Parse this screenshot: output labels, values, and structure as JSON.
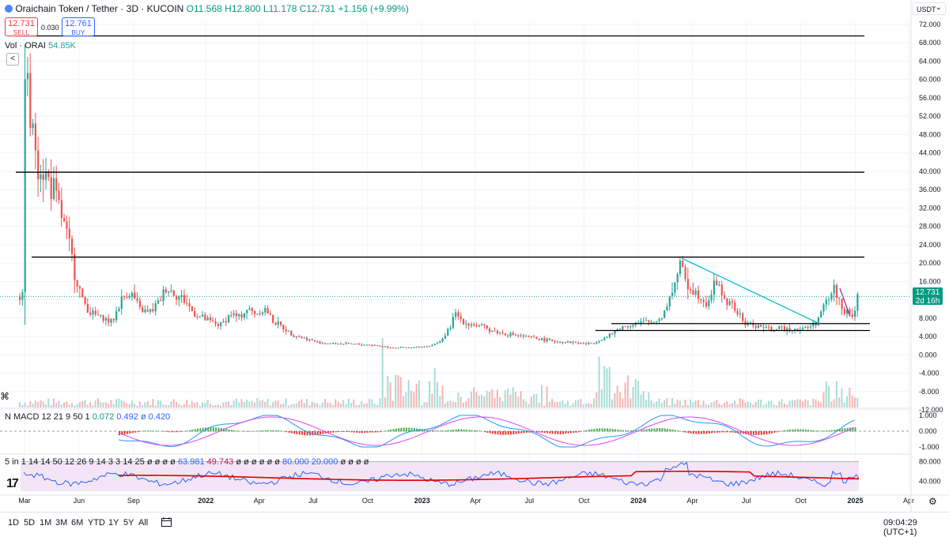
{
  "header": {
    "symbol": "Oraichain Token / Tether · 3D · KUCOIN",
    "open": "O11.568",
    "high": "H12.800",
    "low": "L11.178",
    "close": "C12.731",
    "change": "+1.156 (+9.99%)",
    "sell_price": "12.731",
    "sell_label": "SELL",
    "spread": "0.030",
    "buy_price": "12.761",
    "buy_label": "BUY",
    "toggle_label": "<"
  },
  "volume_legend": {
    "label": "Vol · ORAI",
    "value": "54.85K"
  },
  "macd_legend": {
    "label": "N MACD 12 21 9 50 1",
    "v1": "0.072",
    "v2": "0.492",
    "v3": "ø 0.420"
  },
  "rsi_legend": {
    "label": "5 in 1 14 14 50 12 26 9 14 3 3 14 25",
    "blanks1": "ø ø ø ø",
    "v1": "63.981",
    "v2": "49.743",
    "blanks2": "ø ø ø ø ø ø",
    "v3": "80.000",
    "v4": "20.000",
    "blanks3": "ø ø ø ø"
  },
  "currency_selector": "USDT",
  "last_price": {
    "value": "12.731",
    "countdown": "2d 16h"
  },
  "price_axis": [
    "72.000",
    "68.000",
    "64.000",
    "60.000",
    "56.000",
    "52.000",
    "48.000",
    "44.000",
    "40.000",
    "36.000",
    "32.000",
    "28.000",
    "24.000",
    "20.000",
    "16.000",
    "12.000",
    "8.000",
    "4.000",
    "0.000",
    "-4.000",
    "-8.000",
    "-12.000"
  ],
  "macd_axis": [
    "1.000",
    "0.000",
    "-1.000"
  ],
  "rsi_axis": [
    "80.000",
    "40.000"
  ],
  "time_axis": [
    "Mar",
    "Jun",
    "Sep",
    "2022",
    "Apr",
    "Jul",
    "Oct",
    "2023",
    "Apr",
    "Jul",
    "Oct",
    "2024",
    "Apr",
    "Jul",
    "Oct",
    "2025",
    "Apr"
  ],
  "timeframes": [
    "1D",
    "5D",
    "1M",
    "3M",
    "6M",
    "YTD",
    "1Y",
    "5Y",
    "All"
  ],
  "clock": "09:04:29 (UTC+1)",
  "logo_text": "17",
  "colors": {
    "up": "#26a69a",
    "down": "#ef5350",
    "trendline": "#00bcd4",
    "rsi": "#2962ff",
    "rsi_ma": "#e00000",
    "rsi_band": "#f3e5f5"
  },
  "chart_data": {
    "type": "candlestick",
    "symbol": "ORAI/USDT",
    "timeframe": "3D",
    "exchange": "KUCOIN",
    "ylim": [
      -12,
      72
    ],
    "x_axis": "date",
    "x_range": [
      "2021-03",
      "2025-04"
    ],
    "grid": true,
    "series": [
      {
        "name": "price",
        "x": [
          "2021-02-26",
          "2021-03-10",
          "2021-03-25",
          "2021-04-10",
          "2021-04-25",
          "2021-05-10",
          "2021-05-20",
          "2021-06-05",
          "2021-06-20",
          "2021-07-10",
          "2021-07-25",
          "2021-08-10",
          "2021-08-25",
          "2021-09-10",
          "2021-09-25",
          "2021-10-10",
          "2021-10-25",
          "2021-11-10",
          "2021-11-25",
          "2021-12-10",
          "2021-12-25",
          "2022-01-10",
          "2022-01-25",
          "2022-02-10",
          "2022-02-25",
          "2022-03-10",
          "2022-03-25",
          "2022-04-10",
          "2022-04-25",
          "2022-05-10",
          "2022-05-25",
          "2022-06-10",
          "2022-07-10",
          "2022-08-10",
          "2022-09-10",
          "2022-10-10",
          "2022-11-10",
          "2022-12-10",
          "2023-01-10",
          "2023-01-25",
          "2023-02-10",
          "2023-02-25",
          "2023-03-10",
          "2023-04-10",
          "2023-05-10",
          "2023-06-10",
          "2023-07-10",
          "2023-08-10",
          "2023-09-10",
          "2023-10-10",
          "2023-11-10",
          "2023-11-25",
          "2023-12-10",
          "2023-12-25",
          "2024-01-10",
          "2024-01-25",
          "2024-02-10",
          "2024-02-25",
          "2024-03-10",
          "2024-03-25",
          "2024-04-10",
          "2024-04-25",
          "2024-05-10",
          "2024-05-25",
          "2024-06-10",
          "2024-06-25",
          "2024-07-10",
          "2024-07-25",
          "2024-08-10",
          "2024-08-25",
          "2024-09-10",
          "2024-09-25",
          "2024-10-10",
          "2024-10-25",
          "2024-11-10",
          "2024-11-25",
          "2024-12-10",
          "2024-12-25",
          "2025-01-04"
        ],
        "y": [
          70,
          50,
          42,
          38,
          33,
          26,
          20,
          12,
          9,
          8,
          7,
          12,
          14,
          10,
          9,
          11,
          15,
          13,
          12,
          9,
          8,
          7,
          6.5,
          9,
          8,
          10,
          9,
          10,
          7,
          6,
          4.5,
          3.8,
          2.6,
          2.4,
          2.3,
          2.1,
          1.6,
          1.5,
          1.9,
          2.5,
          4.5,
          9.0,
          7.2,
          6.0,
          4.8,
          4.2,
          3.6,
          3.0,
          2.7,
          2.4,
          4.0,
          5.5,
          6.3,
          6.8,
          7.0,
          7.2,
          8.5,
          14,
          19.5,
          15,
          13,
          11.5,
          16,
          12,
          10,
          7,
          6.5,
          6.2,
          5.5,
          5.6,
          5.8,
          5.6,
          5.9,
          7.0,
          11,
          14.5,
          10,
          8,
          12.7
        ]
      },
      {
        "name": "horizontal levels",
        "values": [
          69.5,
          39.8,
          21.3,
          6.8,
          5.3
        ]
      },
      {
        "name": "descending trendline",
        "x": [
          "2024-03-15",
          "2024-11-01"
        ],
        "y": [
          21.0,
          6.8
        ]
      }
    ],
    "macd": {
      "ylim": [
        -1.3,
        1.3
      ],
      "values": [
        0.072,
        0.492,
        0.42
      ]
    },
    "rsi": {
      "ylim": [
        20,
        90
      ],
      "upper_band": 80,
      "lower_band": 20,
      "values": [
        63.981,
        49.743
      ]
    }
  }
}
